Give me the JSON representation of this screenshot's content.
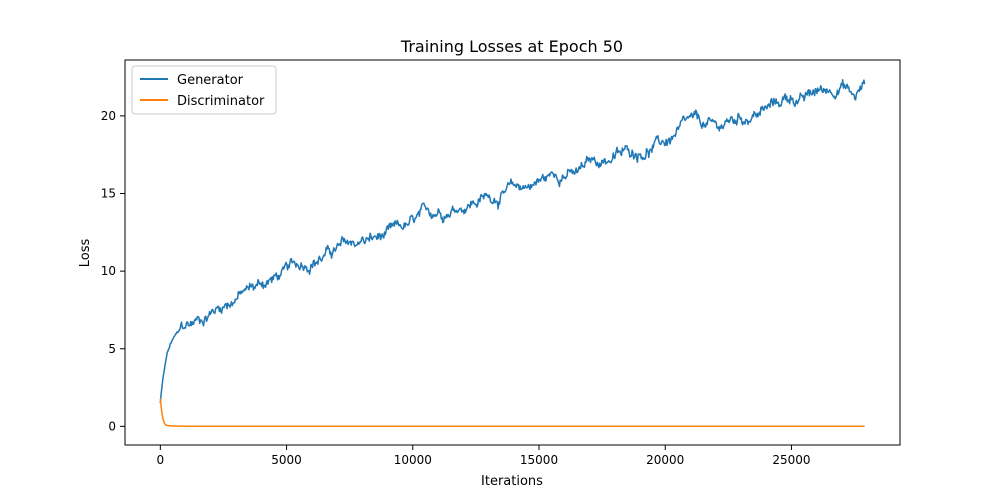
{
  "chart_data": {
    "type": "line",
    "title": "Training Losses at Epoch 50",
    "xlabel": "Iterations",
    "ylabel": "Loss",
    "xlim": [
      -1400,
      29300
    ],
    "ylim": [
      -1.2,
      23.6
    ],
    "xticks": [
      0,
      5000,
      10000,
      15000,
      20000,
      25000
    ],
    "xtick_labels": [
      "0",
      "5000",
      "10000",
      "15000",
      "20000",
      "25000"
    ],
    "yticks": [
      0,
      5,
      10,
      15,
      20
    ],
    "ytick_labels": [
      "0",
      "5",
      "10",
      "15",
      "20"
    ],
    "grid": false,
    "legend_position": "upper left",
    "series": [
      {
        "name": "Generator",
        "color": "#1f77b4",
        "x": [
          0,
          100,
          200,
          300,
          500,
          800,
          1200,
          2000,
          3000,
          4000,
          5000,
          6000,
          7000,
          8000,
          9000,
          10000,
          11000,
          12000,
          13000,
          14000,
          15000,
          16000,
          16500,
          17000,
          18000,
          19000,
          20000,
          21000,
          22000,
          23000,
          24000,
          25000,
          25500,
          26000,
          26500,
          27000,
          27500,
          27900
        ],
        "y": [
          1.5,
          3.0,
          4.0,
          4.8,
          5.6,
          6.1,
          6.5,
          7.4,
          8.4,
          9.2,
          9.9,
          10.8,
          11.4,
          11.9,
          12.2,
          12.9,
          13.9,
          14.4,
          14.8,
          15.2,
          15.8,
          16.5,
          16.2,
          16.9,
          17.4,
          17.8,
          18.3,
          19.4,
          19.1,
          19.9,
          20.4,
          21.3,
          21.0,
          21.5,
          21.7,
          22.2,
          21.2,
          22.0
        ],
        "noise": 0.45
      },
      {
        "name": "Discriminator",
        "color": "#ff7f0e",
        "x": [
          0,
          50,
          100,
          150,
          200,
          300,
          400,
          600,
          1000,
          5000,
          10000,
          15000,
          20000,
          25000,
          27900
        ],
        "y": [
          1.8,
          1.0,
          0.5,
          0.25,
          0.1,
          0.05,
          0.03,
          0.02,
          0.01,
          0.01,
          0.01,
          0.01,
          0.01,
          0.01,
          0.01
        ],
        "noise": 0.0
      }
    ]
  }
}
